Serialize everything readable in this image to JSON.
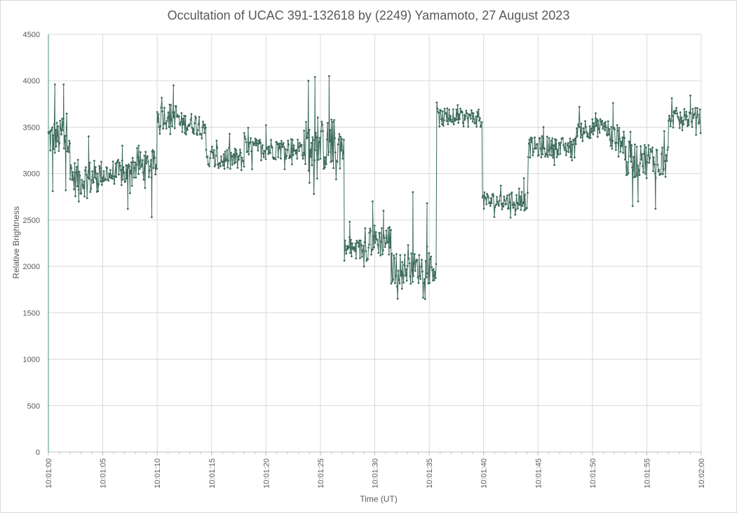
{
  "chart_data": {
    "type": "line",
    "title": "Occultation of UCAC 391-132618 by (2249) Yamamoto, 27 August 2023",
    "xlabel": "Time (UT)",
    "ylabel": "Relative Brightness",
    "ylim": [
      0,
      4500
    ],
    "xlim_seconds": [
      0,
      60
    ],
    "grid": true,
    "x_tick_labels": [
      "10:01:00",
      "10:01:05",
      "10:01:10",
      "10:01:15",
      "10:01:20",
      "10:01:25",
      "10:01:30",
      "10:01:35",
      "10:01:40",
      "10:01:45",
      "10:01:50",
      "10:01:55",
      "10:02:00"
    ],
    "y_ticks": [
      0,
      500,
      1000,
      1500,
      2000,
      2500,
      3000,
      3500,
      4000,
      4500
    ],
    "series_color": "#3d6b5c",
    "series": [
      {
        "segments": [
          {
            "start": 0.0,
            "end": 1.2,
            "mean": 3380,
            "noise": 200,
            "spikes": [
              [
                0.6,
                3960
              ],
              [
                0.4,
                2810
              ]
            ]
          },
          {
            "start": 1.2,
            "end": 2.0,
            "mean": 3450,
            "noise": 220,
            "spikes": [
              [
                1.4,
                3960
              ],
              [
                1.6,
                2820
              ]
            ]
          },
          {
            "start": 2.0,
            "end": 4.5,
            "mean": 2950,
            "noise": 200,
            "spikes": [
              [
                3.7,
                3400
              ],
              [
                2.8,
                2700
              ]
            ]
          },
          {
            "start": 4.5,
            "end": 7.5,
            "mean": 3000,
            "noise": 150,
            "spikes": [
              [
                7.3,
                2620
              ],
              [
                6.8,
                3300
              ]
            ]
          },
          {
            "start": 7.5,
            "end": 10.0,
            "mean": 3080,
            "noise": 160,
            "spikes": [
              [
                9.5,
                2530
              ],
              [
                8.3,
                3300
              ]
            ]
          },
          {
            "start": 10.0,
            "end": 12.0,
            "mean": 3620,
            "noise": 140,
            "spikes": [
              [
                11.5,
                3950
              ]
            ]
          },
          {
            "start": 12.0,
            "end": 14.5,
            "mean": 3540,
            "noise": 120,
            "spikes": []
          },
          {
            "start": 14.5,
            "end": 18.0,
            "mean": 3150,
            "noise": 130,
            "spikes": []
          },
          {
            "start": 18.0,
            "end": 23.5,
            "mean": 3270,
            "noise": 120,
            "spikes": [
              [
                20.0,
                3520
              ]
            ]
          },
          {
            "start": 23.5,
            "end": 27.2,
            "mean": 3300,
            "noise": 280,
            "spikes": [
              [
                23.9,
                4000
              ],
              [
                24.5,
                4040
              ],
              [
                25.8,
                4050
              ],
              [
                24.0,
                2900
              ]
            ]
          },
          {
            "start": 27.2,
            "end": 29.5,
            "mean": 2180,
            "noise": 120,
            "spikes": [
              [
                27.7,
                2480
              ]
            ]
          },
          {
            "start": 29.5,
            "end": 31.5,
            "mean": 2280,
            "noise": 180,
            "spikes": [
              [
                29.8,
                2700
              ],
              [
                30.8,
                2600
              ]
            ]
          },
          {
            "start": 31.5,
            "end": 35.7,
            "mean": 1980,
            "noise": 170,
            "spikes": [
              [
                33.5,
                2800
              ],
              [
                34.8,
                2680
              ],
              [
                32.5,
                1760
              ]
            ]
          },
          {
            "start": 35.7,
            "end": 39.9,
            "mean": 3600,
            "noise": 100,
            "spikes": []
          },
          {
            "start": 39.9,
            "end": 44.1,
            "mean": 2700,
            "noise": 100,
            "spikes": [
              [
                43.7,
                2950
              ]
            ]
          },
          {
            "start": 44.1,
            "end": 48.5,
            "mean": 3280,
            "noise": 110,
            "spikes": [
              [
                45.5,
                3500
              ]
            ]
          },
          {
            "start": 48.5,
            "end": 51.5,
            "mean": 3490,
            "noise": 110,
            "spikes": [
              [
                50.3,
                3650
              ]
            ]
          },
          {
            "start": 51.5,
            "end": 53.0,
            "mean": 3380,
            "noise": 150,
            "spikes": [
              [
                51.9,
                3760
              ]
            ]
          },
          {
            "start": 53.0,
            "end": 57.0,
            "mean": 3150,
            "noise": 200,
            "spikes": [
              [
                53.7,
                2650
              ],
              [
                54.2,
                2700
              ],
              [
                55.8,
                2620
              ],
              [
                53.5,
                3450
              ]
            ]
          },
          {
            "start": 57.0,
            "end": 60.0,
            "mean": 3600,
            "noise": 110,
            "spikes": [
              [
                59.0,
                3840
              ]
            ]
          }
        ]
      }
    ]
  }
}
